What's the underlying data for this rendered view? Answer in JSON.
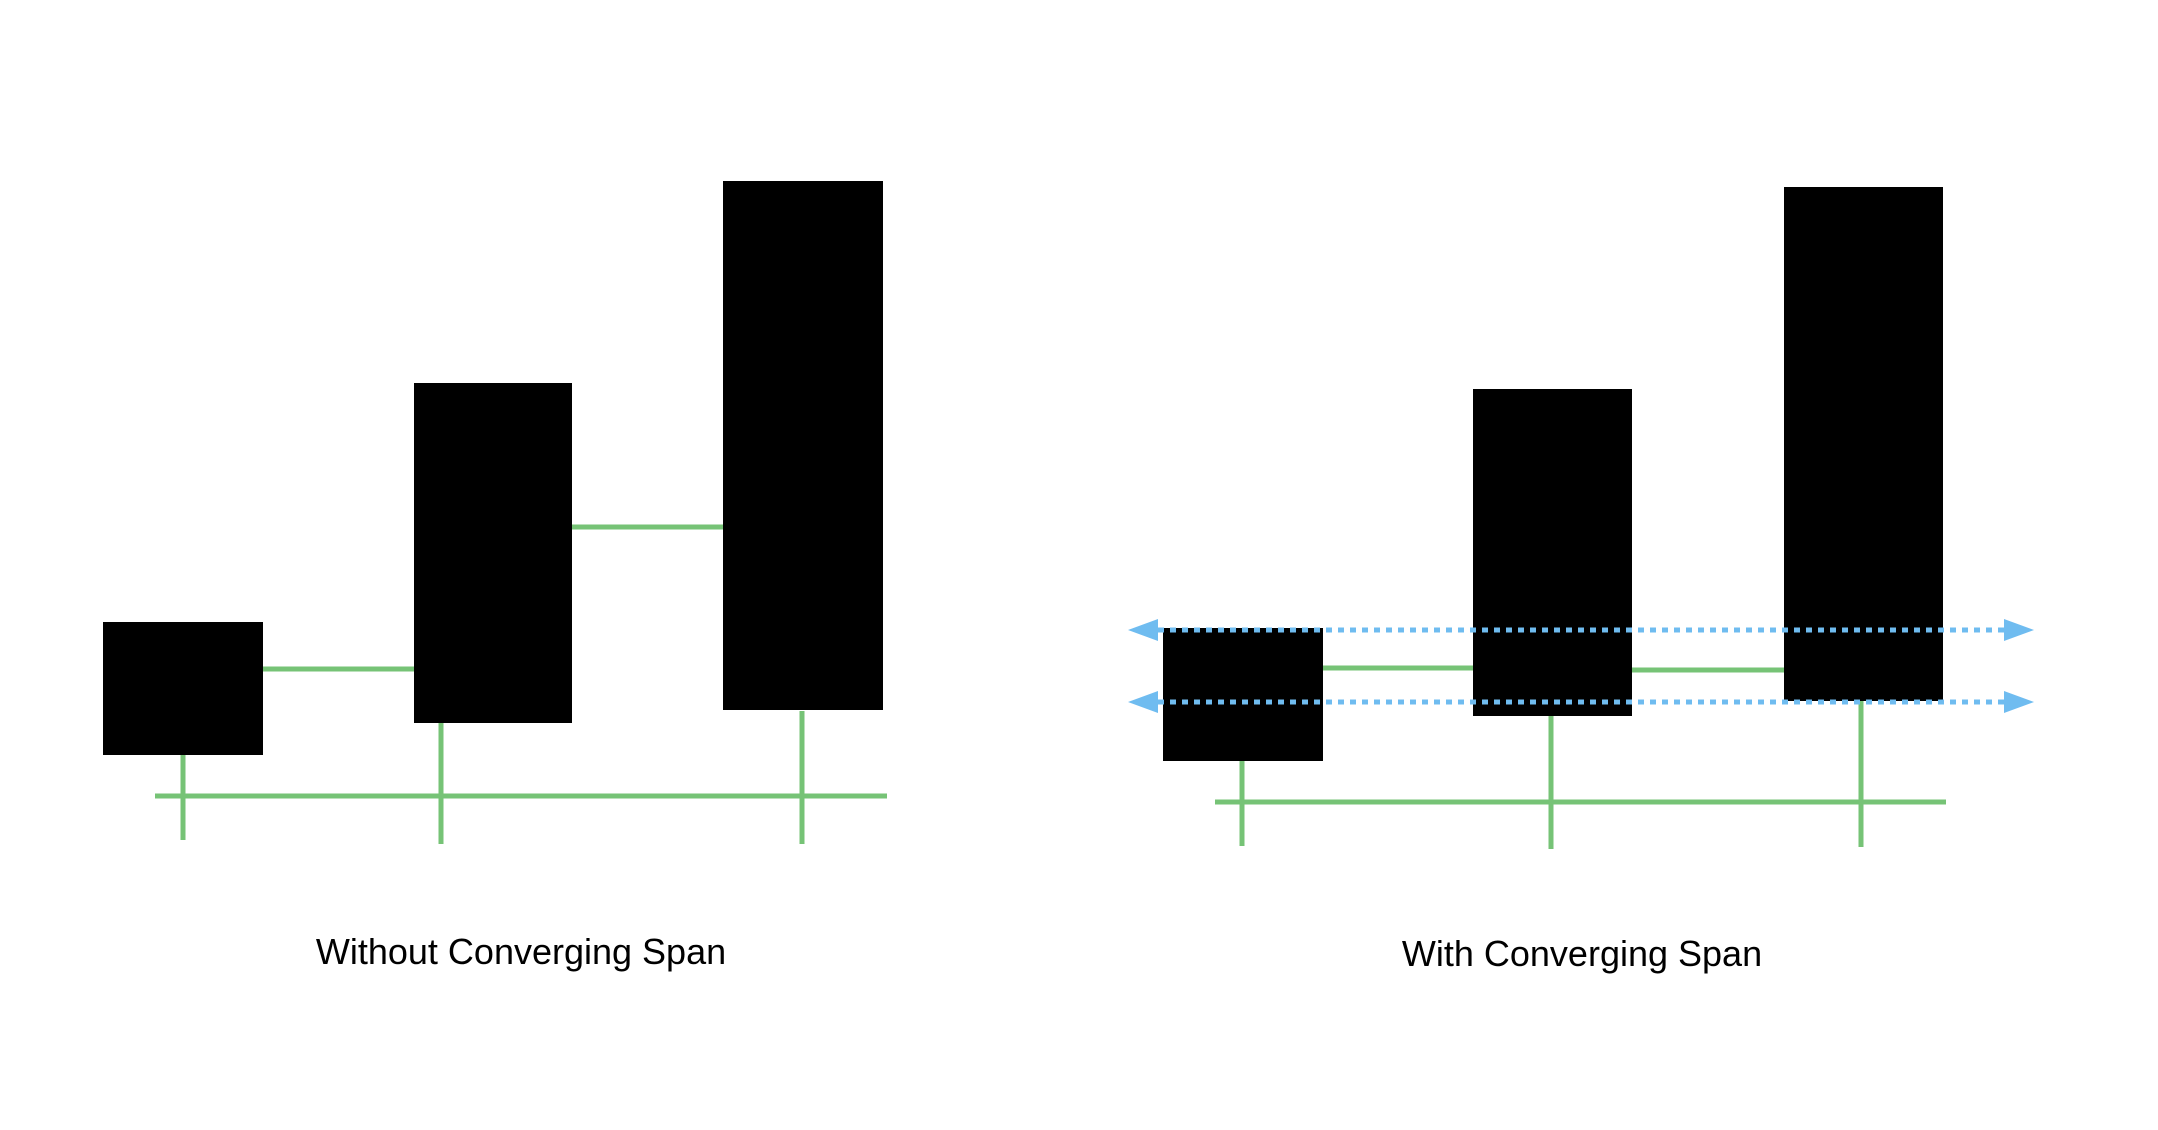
{
  "colors": {
    "background": "#ffffff",
    "block": "#000000",
    "baseline": "#76c376",
    "span_guide": "#6fbcf0"
  },
  "panels": [
    {
      "caption": "Without Converging Span",
      "blocks": 3,
      "converging_span": false
    },
    {
      "caption": "With Converging Span",
      "blocks": 3,
      "converging_span": true,
      "guide_style": "dotted double-headed arrows"
    }
  ]
}
